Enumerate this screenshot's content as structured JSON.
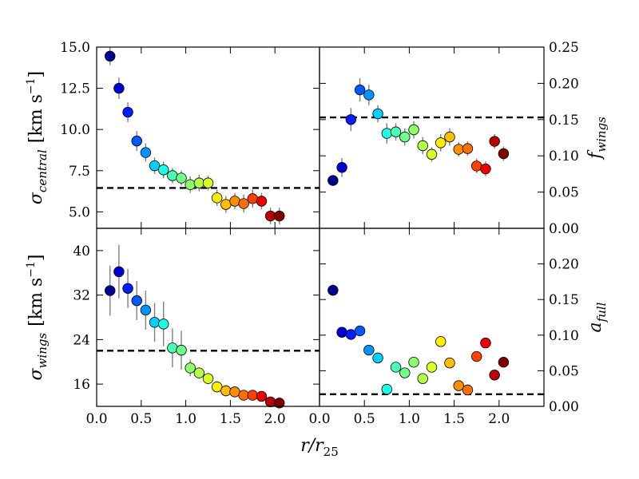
{
  "chart_data": {
    "type": "scatter",
    "x_label": "r/r",
    "x_label_sub": "25",
    "x_ticks_left": [
      "0.0",
      "0.5",
      "1.0",
      "1.5",
      "2.0"
    ],
    "x_ticks_right": [
      "0.0",
      "0.5",
      "1.0",
      "1.5",
      "2.0"
    ],
    "x_range_left": [
      0.0,
      2.5
    ],
    "x_range_right": [
      0.0,
      2.5
    ],
    "panels": [
      {
        "id": "sigma_central",
        "position": "top-left",
        "ylabel_main": "σ",
        "ylabel_sub": "central",
        "ylabel_units": "[km s",
        "ylabel_units_sup": "−1",
        "ylabel_units_close": "]",
        "ylim": [
          4.0,
          15.0
        ],
        "yticks": [
          5.0,
          7.5,
          10.0,
          12.5,
          15.0
        ],
        "ytick_labels": [
          "5.0",
          "7.5",
          "10.0",
          "12.5",
          "15.0"
        ],
        "hline": 6.45,
        "x": [
          0.15,
          0.25,
          0.35,
          0.45,
          0.55,
          0.65,
          0.75,
          0.85,
          0.95,
          1.05,
          1.15,
          1.25,
          1.35,
          1.45,
          1.55,
          1.65,
          1.75,
          1.85,
          1.95,
          2.05
        ],
        "y": [
          14.45,
          12.5,
          11.05,
          9.3,
          8.6,
          7.8,
          7.55,
          7.2,
          7.05,
          6.65,
          6.75,
          6.75,
          5.85,
          5.45,
          5.65,
          5.5,
          5.8,
          5.65,
          4.75,
          4.75
        ],
        "err": [
          0.55,
          0.65,
          0.6,
          0.6,
          0.55,
          0.5,
          0.5,
          0.45,
          0.45,
          0.5,
          0.5,
          0.45,
          0.5,
          0.5,
          0.5,
          0.55,
          0.55,
          0.5,
          0.5,
          0.5
        ]
      },
      {
        "id": "f_wings",
        "position": "top-right",
        "ylabel_main": "f",
        "ylabel_sub": "wings",
        "ylim": [
          0.0,
          0.25
        ],
        "yticks": [
          0.0,
          0.05,
          0.1,
          0.15,
          0.2,
          0.25
        ],
        "ytick_labels": [
          "0.00",
          "0.05",
          "0.10",
          "0.15",
          "0.20",
          "0.25"
        ],
        "hline": 0.153,
        "x": [
          0.15,
          0.25,
          0.35,
          0.45,
          0.55,
          0.65,
          0.75,
          0.85,
          0.95,
          1.05,
          1.15,
          1.25,
          1.35,
          1.45,
          1.55,
          1.65,
          1.75,
          1.85,
          1.95,
          2.05
        ],
        "y": [
          0.066,
          0.084,
          0.15,
          0.191,
          0.184,
          0.158,
          0.131,
          0.133,
          0.126,
          0.136,
          0.114,
          0.102,
          0.118,
          0.126,
          0.109,
          0.11,
          0.086,
          0.082,
          0.12,
          0.103
        ],
        "err": [
          0.006,
          0.013,
          0.016,
          0.016,
          0.014,
          0.012,
          0.014,
          0.012,
          0.012,
          0.012,
          0.012,
          0.01,
          0.012,
          0.012,
          0.01,
          0.01,
          0.01,
          0.01,
          0.01,
          0.01
        ]
      },
      {
        "id": "sigma_wings",
        "position": "bottom-left",
        "ylabel_main": "σ",
        "ylabel_sub": "wings",
        "ylabel_units": "[km s",
        "ylabel_units_sup": "−1",
        "ylabel_units_close": "]",
        "ylim": [
          12.0,
          44.0
        ],
        "yticks": [
          16,
          24,
          32,
          40
        ],
        "ytick_labels": [
          "16",
          "24",
          "32",
          "40"
        ],
        "hline": 22.0,
        "x": [
          0.15,
          0.25,
          0.35,
          0.45,
          0.55,
          0.65,
          0.75,
          0.85,
          0.95,
          1.05,
          1.15,
          1.25,
          1.35,
          1.45,
          1.55,
          1.65,
          1.75,
          1.85,
          1.95,
          2.05
        ],
        "y": [
          32.8,
          36.2,
          33.2,
          31.0,
          29.3,
          27.1,
          26.8,
          22.5,
          22.1,
          18.9,
          18.0,
          17.0,
          15.5,
          14.8,
          14.6,
          14.0,
          14.0,
          13.8,
          12.8,
          12.6
        ],
        "err": [
          4.5,
          4.8,
          3.5,
          3.5,
          3.5,
          3.5,
          4.0,
          3.5,
          3.5,
          1.5,
          1.0,
          1.0,
          1.0,
          1.0,
          0.8,
          0.8,
          0.8,
          0.8,
          0.8,
          0.8
        ]
      },
      {
        "id": "a_full",
        "position": "bottom-right",
        "ylabel_main": "a",
        "ylabel_sub": "full",
        "ylim": [
          0.0,
          0.25
        ],
        "yticks": [
          0.0,
          0.05,
          0.1,
          0.15,
          0.2
        ],
        "ytick_labels": [
          "0.00",
          "0.05",
          "0.10",
          "0.15",
          "0.20"
        ],
        "hline": 0.017,
        "x": [
          0.15,
          0.25,
          0.35,
          0.45,
          0.55,
          0.65,
          0.75,
          0.85,
          0.95,
          1.05,
          1.15,
          1.25,
          1.35,
          1.45,
          1.55,
          1.65,
          1.75,
          1.85,
          1.95,
          2.05
        ],
        "y": [
          0.163,
          0.104,
          0.101,
          0.106,
          0.079,
          0.068,
          0.024,
          0.055,
          0.047,
          0.062,
          0.039,
          0.055,
          0.091,
          0.061,
          0.029,
          0.023,
          0.07,
          0.089,
          0.044,
          0.062
        ],
        "err": [
          0.008,
          0.004,
          0.004,
          0.004,
          0.004,
          0.004,
          0.004,
          0.004,
          0.004,
          0.004,
          0.004,
          0.004,
          0.004,
          0.004,
          0.004,
          0.004,
          0.004,
          0.004,
          0.004,
          0.004
        ]
      }
    ],
    "point_colors": [
      "#00008f",
      "#0000d4",
      "#001cff",
      "#0058ff",
      "#0094ff",
      "#00d0ff",
      "#1affe6",
      "#4affb5",
      "#6dff8a",
      "#8dff6a",
      "#b5ff4a",
      "#d7ff26",
      "#ffee00",
      "#ffbf00",
      "#ff8f00",
      "#ff6f00",
      "#ff3f00",
      "#ef0000",
      "#bc0000",
      "#800000"
    ]
  }
}
